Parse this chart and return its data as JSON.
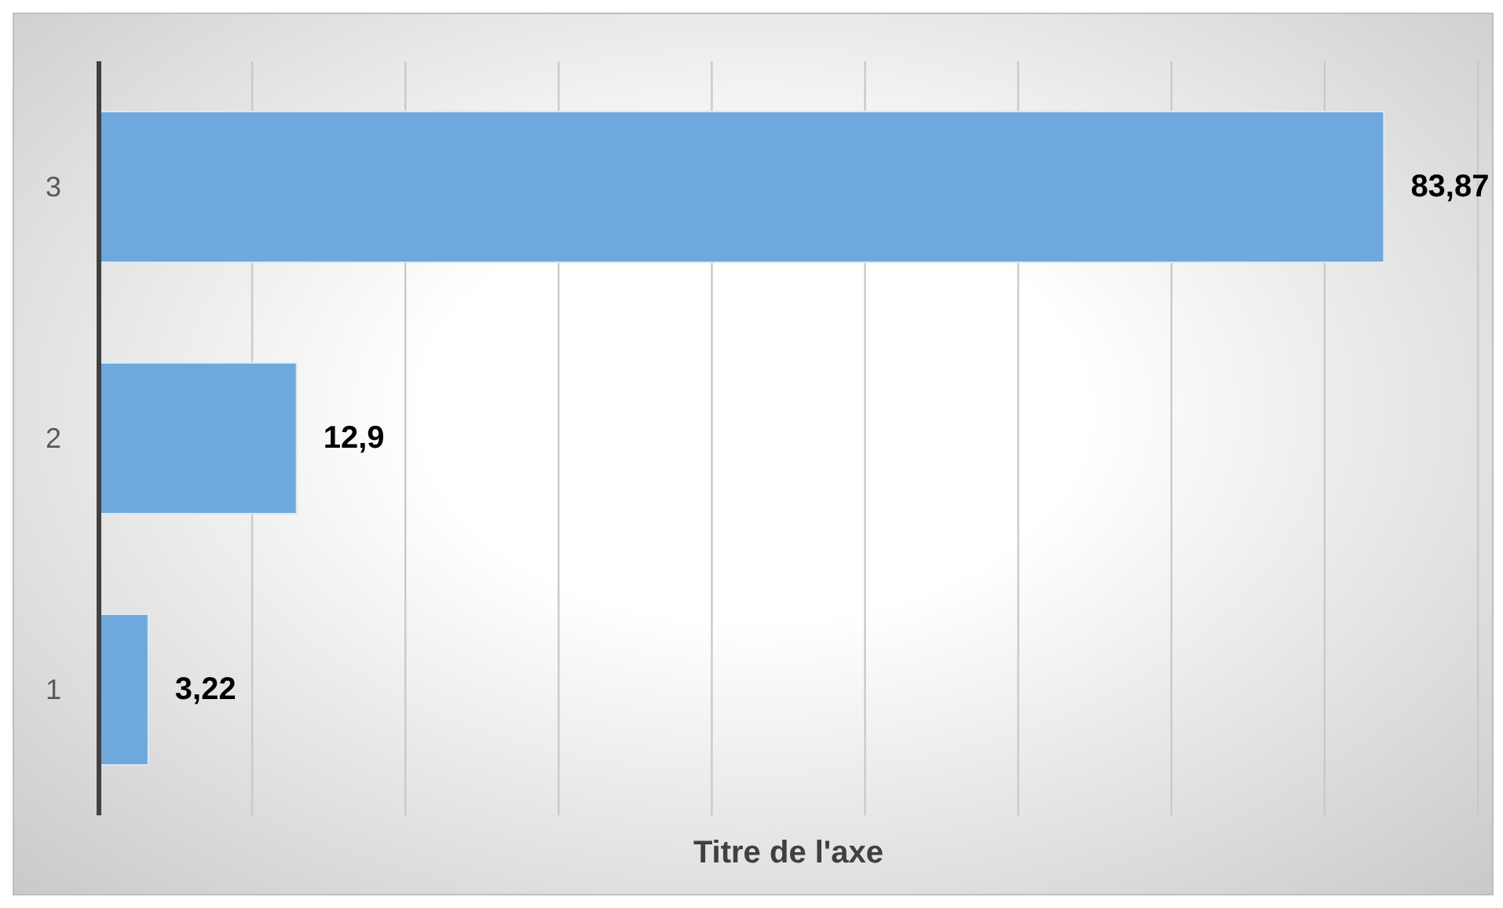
{
  "chart_data": {
    "type": "bar",
    "orientation": "horizontal",
    "categories": [
      "3",
      "2",
      "1"
    ],
    "values": [
      83.87,
      12.9,
      3.22
    ],
    "value_labels": [
      "83,87",
      "12,9",
      "3,22"
    ],
    "color": "#6fa8dc",
    "xlabel": "Titre de l'axe",
    "xlim": [
      0,
      90
    ],
    "xticks": [
      {
        "value": 0,
        "label": null
      },
      {
        "value": 10,
        "label": null
      },
      {
        "value": 20,
        "label": null
      },
      {
        "value": 30,
        "label": null
      },
      {
        "value": 40,
        "label": null
      },
      {
        "value": 50,
        "label": null
      },
      {
        "value": 60,
        "label": null
      },
      {
        "value": 70,
        "label": null
      },
      {
        "value": 80,
        "label": null
      },
      {
        "value": 90,
        "label": null
      }
    ],
    "grid": "x",
    "tick_labels": "y"
  }
}
